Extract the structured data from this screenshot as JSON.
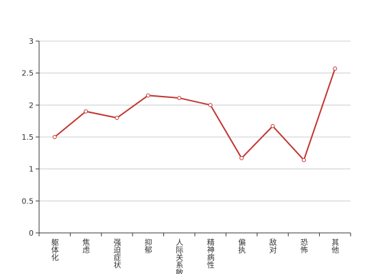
{
  "chart_data": {
    "type": "line",
    "categories": [
      "躯体化",
      "焦虑",
      "强迫症状",
      "抑郁",
      "人际关系敏感",
      "精神病性",
      "偏执",
      "敌对",
      "恐怖",
      "其他"
    ],
    "values": [
      1.5,
      1.9,
      1.8,
      2.15,
      2.11,
      2.0,
      1.17,
      1.67,
      1.14,
      2.57
    ],
    "color": "#c23531",
    "ylim": [
      0,
      3
    ],
    "yticks": [
      0,
      0.5,
      1,
      1.5,
      2,
      2.5,
      3
    ],
    "grid": true
  }
}
